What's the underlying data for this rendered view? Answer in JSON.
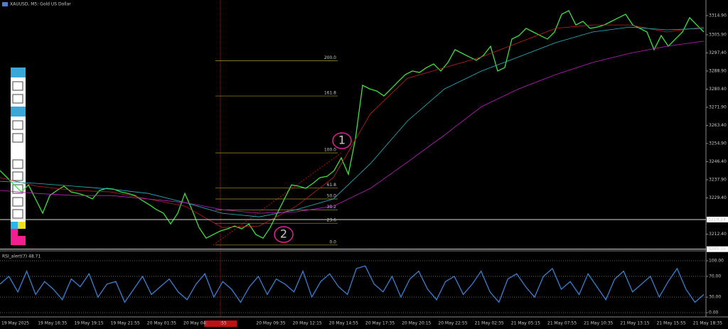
{
  "chart_data": [
    {
      "type": "line",
      "title": "XAUUSD, M5:  Gold US Dollar",
      "ylim": [
        3204.9,
        3322.2
      ],
      "yticks": [
        {
          "value": 3314.9,
          "label": "3314.90"
        },
        {
          "value": 3305.9,
          "label": "3305.90"
        },
        {
          "value": 3297.4,
          "label": "3297.40"
        },
        {
          "value": 3288.9,
          "label": "3288.90"
        },
        {
          "value": 3280.4,
          "label": "3280.40"
        },
        {
          "value": 3271.9,
          "label": "3271.90"
        },
        {
          "value": 3263.4,
          "label": "3263.40"
        },
        {
          "value": 3254.9,
          "label": "3254.90"
        },
        {
          "value": 3246.4,
          "label": "3246.40"
        },
        {
          "value": 3237.9,
          "label": "3237.90"
        },
        {
          "value": 3229.4,
          "label": "3229.40"
        },
        {
          "value": 3212.4,
          "label": "3212.40"
        }
      ],
      "hlines": [
        3219.24,
        3205.35
      ],
      "time_labels": [
        "19 May 2025",
        "19 May 16:35",
        "19 May 19:15",
        "19 May 21:55",
        "20 May 01:35",
        "20 May 04:",
        ":55",
        "20 May 09:35",
        "20 May 12:15",
        "20 May 14:55",
        "20 May 17:35",
        "20 May 20:15",
        "20 May 22:55",
        "21 May 02:35",
        "21 May 05:15",
        "21 May 07:55",
        "21 May 10:35",
        "21 May 13:15",
        "21 May 15:55",
        "21 May 18:35"
      ],
      "fib": {
        "range": [
          3207.3,
          3250.5
        ],
        "levels": [
          {
            "value": 200,
            "label": "200.0"
          },
          {
            "value": 161.8,
            "label": "161.8"
          },
          {
            "value": 100,
            "label": "100.0"
          },
          {
            "value": 61.8,
            "label": "61.8"
          },
          {
            "value": 50,
            "label": "50.0"
          },
          {
            "value": 38.2,
            "label": "38.2"
          },
          {
            "value": 23.6,
            "label": "23.6"
          },
          {
            "value": 0,
            "label": "0.0"
          }
        ]
      },
      "annotations": [
        "1",
        "2"
      ],
      "series": [
        {
          "name": "XAUUSD",
          "color": "#3fe03f",
          "values": [
            3242.2,
            3238.9,
            3235.5,
            3232.2,
            3235.5,
            3228.9,
            3222.2,
            3230.5,
            3232.9,
            3234.9,
            3232.2,
            3231.5,
            3230.5,
            3228.9,
            3232.9,
            3233.9,
            3233.5,
            3232.2,
            3231.5,
            3230.5,
            3228.2,
            3226.2,
            3223.9,
            3222.2,
            3217.2,
            3222.2,
            3231.5,
            3223.9,
            3215.5,
            3210.5,
            3212.2,
            3213.9,
            3214.9,
            3216.2,
            3214.9,
            3217.2,
            3212.2,
            3210.5,
            3215.5,
            3222.2,
            3228.9,
            3235.5,
            3234.9,
            3233.9,
            3236.2,
            3238.9,
            3239.5,
            3242.2,
            3248.2,
            3240.5,
            3257.2,
            3282.2,
            3280.5,
            3279.5,
            3277.2,
            3280.5,
            3283.9,
            3287.2,
            3288.9,
            3288.2,
            3290.5,
            3292.2,
            3288.9,
            3292.9,
            3298.9,
            3297.2,
            3295.5,
            3293.9,
            3296.2,
            3300.5,
            3288.9,
            3290.5,
            3303.9,
            3305.5,
            3308.9,
            3307.2,
            3305.5,
            3303.9,
            3307.2,
            3315.5,
            3317.2,
            3310.5,
            3312.2,
            3308.9,
            3309.5,
            3310.5,
            3312.2,
            3313.9,
            3315.5,
            3310.5,
            3308.9,
            3307.2,
            3298.9,
            3305.5,
            3300.5,
            3303.9,
            3307.2,
            3313.9,
            3310.5,
            3307.2
          ]
        },
        {
          "name": "MA fast",
          "color": "#c02020",
          "values": [
            3238.9,
            3234.9,
            3232.9,
            3232.2,
            3228.9,
            3225.5,
            3215.5,
            3216.2,
            3225.5,
            3238.9,
            3268.9,
            3285.5,
            3290.5,
            3295.5,
            3302.2,
            3308.9,
            3310.5,
            3310.5,
            3307.2,
            3309.5
          ]
        },
        {
          "name": "MA mid",
          "color": "#28b8c8",
          "values": [
            3237.2,
            3236.2,
            3234.9,
            3233.5,
            3231.5,
            3227.2,
            3222.2,
            3220.5,
            3223.9,
            3228.9,
            3245.5,
            3265.5,
            3280.5,
            3288.9,
            3295.5,
            3302.2,
            3307.2,
            3309.5,
            3308.2,
            3308.9
          ]
        },
        {
          "name": "MA slow",
          "color": "#c020c0",
          "values": [
            3232.9,
            3231.5,
            3230.5,
            3230.5,
            3228.9,
            3227.2,
            3223.9,
            3222.2,
            3222.9,
            3225.5,
            3233.9,
            3246.2,
            3258.9,
            3272.2,
            3280.5,
            3287.2,
            3292.9,
            3297.2,
            3300.5,
            3302.9
          ]
        }
      ]
    },
    {
      "type": "line",
      "title": "RSI_alert(7) 48.71",
      "ylim": [
        0,
        100
      ],
      "yticks": [
        {
          "value": 100,
          "label": "100.00"
        },
        {
          "value": 70,
          "label": "70.00"
        },
        {
          "value": 30,
          "label": "30.00"
        },
        {
          "value": 0,
          "label": "0.00"
        }
      ],
      "series": [
        {
          "name": "RSI",
          "color": "#3a7fd0",
          "values": [
            55,
            70,
            40,
            80,
            35,
            60,
            45,
            25,
            65,
            50,
            75,
            30,
            55,
            60,
            20,
            45,
            70,
            35,
            50,
            65,
            40,
            25,
            55,
            75,
            30,
            60,
            45,
            20,
            50,
            70,
            35,
            65,
            55,
            40,
            80,
            30,
            60,
            75,
            50,
            35,
            85,
            90,
            55,
            40,
            70,
            30,
            65,
            80,
            45,
            25,
            60,
            70,
            35,
            55,
            80,
            40,
            20,
            65,
            75,
            50,
            30,
            70,
            85,
            45,
            60,
            35,
            75,
            50,
            25,
            65,
            80,
            40,
            55,
            70,
            30,
            60,
            85,
            45,
            20,
            35
          ]
        }
      ]
    }
  ]
}
